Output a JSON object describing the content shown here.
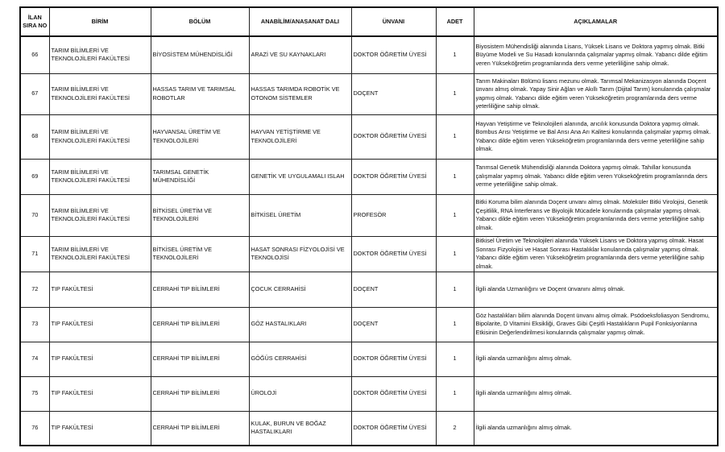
{
  "headers": {
    "no": "İLAN SIRA NO",
    "birim": "BİRİM",
    "bolum": "BÖLÜM",
    "anabilim": "ANABİLİM/ANASANAT DALI",
    "unvan": "ÜNVANI",
    "adet": "ADET",
    "aciklama": "AÇIKLAMALAR"
  },
  "rows": [
    {
      "no": "66",
      "birim": "TARIM BİLİMLERİ VE TEKNOLOJİLERİ FAKÜLTESİ",
      "bolum": "BİYOSİSTEM MÜHENDİSLİĞİ",
      "anabilim": "ARAZİ VE SU KAYNAKLARI",
      "unvan": "DOKTOR ÖĞRETİM ÜYESİ",
      "adet": "1",
      "aciklama": "Biyosistem Mühendisliği alanında Lisans, Yüksek Lisans ve Doktora yapmış olmak. Bitki Büyüme Modeli ve Su Hasadı konularında çalışmalar yapmış olmak. Yabancı dilde eğitim veren Yükseköğretim programlarında ders verme yeterliliğine sahip olmak."
    },
    {
      "no": "67",
      "birim": "TARIM BİLİMLERİ VE TEKNOLOJİLERİ FAKÜLTESİ",
      "bolum": "HASSAS TARIM VE TARIMSAL ROBOTLAR",
      "anabilim": "HASSAS TARIMDA ROBOTİK VE OTONOM SİSTEMLER",
      "unvan": "DOÇENT",
      "adet": "1",
      "aciklama": "Tarım Makinaları Bölümü lisans mezunu olmak. Tarımsal Mekanizasyon alanında Doçent ünvanı almış olmak. Yapay Sinir Ağları ve Akıllı Tarım (Dijital Tarım) konularında çalışmalar yapmış olmak. Yabancı dilde eğitim veren Yükseköğretim programlarında ders verme yeterliliğine sahip olmak."
    },
    {
      "no": "68",
      "birim": "TARIM BİLİMLERİ VE TEKNOLOJİLERİ FAKÜLTESİ",
      "bolum": "HAYVANSAL ÜRETİM VE TEKNOLOJİLERİ",
      "anabilim": "HAYVAN YETİŞTİRME VE TEKNOLOJİLERİ",
      "unvan": "DOKTOR ÖĞRETİM ÜYESİ",
      "adet": "1",
      "aciklama": "Hayvan Yetiştirme ve Teknolojileri alanında, arıcılık konusunda Doktora yapmış olmak. Bombus Arısı Yetiştirme ve Bal Arısı Ana Arı Kalitesi konularında çalışmalar yapmış olmak. Yabancı dilde eğitim veren Yükseköğretim programlarında ders verme yeterliliğine sahip olmak."
    },
    {
      "no": "69",
      "birim": "TARIM BİLİMLERİ VE TEKNOLOJİLERİ FAKÜLTESİ",
      "bolum": "TARIMSAL GENETİK MÜHENDİSLİĞİ",
      "anabilim": "GENETİK VE UYGULAMALI ISLAH",
      "unvan": "DOKTOR ÖĞRETİM ÜYESİ",
      "adet": "1",
      "aciklama": "Tarımsal Genetik Mühendisliği alanında Doktora yapmış olmak. Tahıllar konusunda çalışmalar yapmış olmak. Yabancı dilde eğitim veren Yükseköğretim programlarında ders verme yeterliliğine sahip olmak."
    },
    {
      "no": "70",
      "birim": "TARIM BİLİMLERİ VE TEKNOLOJİLERİ FAKÜLTESİ",
      "bolum": "BİTKİSEL ÜRETİM VE TEKNOLOJİLERİ",
      "anabilim": "BİTKİSEL ÜRETİM",
      "unvan": "PROFESÖR",
      "adet": "1",
      "aciklama": "Bitki Koruma bilim alanında Doçent unvanı almış olmak. Moleküler Bitki Virolojisi, Genetik Çeşitlilik, RNA İnterferans ve Biyolojik Mücadele konularında çalışmalar yapmış olmak. Yabancı dilde eğitim veren Yükseköğretim programlarında ders verme yeterliliğine sahip olmak."
    },
    {
      "no": "71",
      "birim": "TARIM BİLİMLERİ VE TEKNOLOJİLERİ FAKÜLTESİ",
      "bolum": "BİTKİSEL ÜRETİM VE TEKNOLOJİLERİ",
      "anabilim": "HASAT SONRASI FİZYOLOJİSİ VE TEKNOLOJİSİ",
      "unvan": "DOKTOR ÖĞRETİM ÜYESİ",
      "adet": "1",
      "aciklama": "Bitkisel Üretim ve Teknolojileri alanında Yüksek Lisans ve Doktora yapmış olmak. Hasat Sonrası Fizyolojisi ve Hasat Sonrası Hastalıklar konularında çalışmalar yapmış olmak. Yabancı dilde eğitim veren Yükseköğretim programlarında ders verme yeterliliğine sahip olmak."
    },
    {
      "no": "72",
      "birim": "TIP FAKÜLTESİ",
      "bolum": "CERRAHİ TIP BİLİMLERİ",
      "anabilim": "ÇOCUK CERRAHİSİ",
      "unvan": "DOÇENT",
      "adet": "1",
      "aciklama": "İlgili alanda Uzmanlığını ve Doçent ünvanını almış olmak."
    },
    {
      "no": "73",
      "birim": "TIP FAKÜLTESİ",
      "bolum": "CERRAHİ TIP BİLİMLERİ",
      "anabilim": "GÖZ HASTALIKLARI",
      "unvan": "DOÇENT",
      "adet": "1",
      "aciklama": "Göz hastalıkları bilim alanında Doçent ünvanı almış olmak.  Psödoeksfoliasyon Sendromu, Bipolarite, D Vitamini Eksikliği, Graves Gibi Çeşitli Hastalıkların Pupil Fonksiyonlarına Etkisinin Değerlendirilmesi konularında çalışmalar yapmış olmak."
    },
    {
      "no": "74",
      "birim": "TIP FAKÜLTESİ",
      "bolum": "CERRAHİ TIP BİLİMLERİ",
      "anabilim": "GÖĞÜS CERRAHİSİ",
      "unvan": "DOKTOR ÖĞRETİM ÜYESİ",
      "adet": "1",
      "aciklama": "İlgili alanda uzmanlığını almış olmak."
    },
    {
      "no": "75",
      "birim": "TIP FAKÜLTESİ",
      "bolum": "CERRAHİ TIP BİLİMLERİ",
      "anabilim": "ÜROLOJİ",
      "unvan": "DOKTOR ÖĞRETİM ÜYESİ",
      "adet": "1",
      "aciklama": "İlgili alanda uzmanlığını almış olmak."
    },
    {
      "no": "76",
      "birim": "TIP FAKÜLTESİ",
      "bolum": "CERRAHİ TIP BİLİMLERİ",
      "anabilim": "KULAK, BURUN VE BOĞAZ HASTALIKLARI",
      "unvan": "DOKTOR ÖĞRETİM ÜYESİ",
      "adet": "2",
      "aciklama": "İlgili alanda uzmanlığını almış olmak."
    }
  ]
}
